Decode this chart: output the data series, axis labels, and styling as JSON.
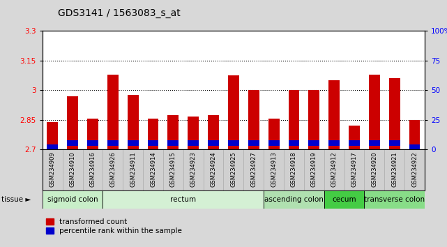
{
  "title": "GDS3141 / 1563083_s_at",
  "samples": [
    "GSM234909",
    "GSM234910",
    "GSM234916",
    "GSM234926",
    "GSM234911",
    "GSM234914",
    "GSM234915",
    "GSM234923",
    "GSM234924",
    "GSM234925",
    "GSM234927",
    "GSM234913",
    "GSM234918",
    "GSM234919",
    "GSM234912",
    "GSM234917",
    "GSM234920",
    "GSM234921",
    "GSM234922"
  ],
  "red_values": [
    2.84,
    2.97,
    2.855,
    3.08,
    2.975,
    2.855,
    2.875,
    2.865,
    2.875,
    3.075,
    3.0,
    2.855,
    3.0,
    3.0,
    3.05,
    2.82,
    3.08,
    3.06,
    2.85
  ],
  "blue_heights": [
    0.025,
    0.025,
    0.025,
    0.025,
    0.025,
    0.025,
    0.025,
    0.025,
    0.025,
    0.025,
    0.025,
    0.025,
    0.025,
    0.025,
    0.025,
    0.025,
    0.025,
    0.025,
    0.025
  ],
  "blue_bottoms": [
    2.7,
    2.72,
    2.72,
    2.72,
    2.72,
    2.72,
    2.72,
    2.72,
    2.72,
    2.72,
    2.72,
    2.72,
    2.72,
    2.72,
    2.72,
    2.72,
    2.72,
    2.72,
    2.7
  ],
  "ylim_left": [
    2.7,
    3.3
  ],
  "yticks_left": [
    2.7,
    2.85,
    3.0,
    3.15,
    3.3
  ],
  "ytick_labels_left": [
    "2.7",
    "2.85",
    "3",
    "3.15",
    "3.3"
  ],
  "yticks_right": [
    0,
    25,
    50,
    75,
    100
  ],
  "ytick_labels_right": [
    "0",
    "25",
    "50",
    "75",
    "100%"
  ],
  "hlines": [
    2.85,
    3.0,
    3.15
  ],
  "tissue_groups": [
    {
      "label": "sigmoid colon",
      "start": 0,
      "end": 3,
      "color": "#c8eec8"
    },
    {
      "label": "rectum",
      "start": 3,
      "end": 11,
      "color": "#d4f0d4"
    },
    {
      "label": "ascending colon",
      "start": 11,
      "end": 14,
      "color": "#b0e0b0"
    },
    {
      "label": "cecum",
      "start": 14,
      "end": 16,
      "color": "#44cc44"
    },
    {
      "label": "transverse colon",
      "start": 16,
      "end": 19,
      "color": "#88dd88"
    }
  ],
  "bar_width": 0.55,
  "red_color": "#cc0000",
  "blue_color": "#0000cc",
  "background_color": "#d8d8d8",
  "plot_bg": "#ffffff",
  "xticklabel_bg": "#d0d0d0",
  "title_fontsize": 10,
  "tick_fontsize": 7.5,
  "tissue_label_fontsize": 7.5,
  "sample_label_fontsize": 6.0
}
